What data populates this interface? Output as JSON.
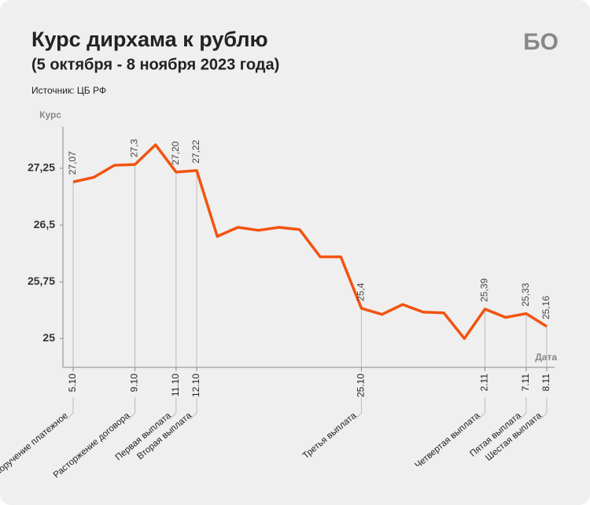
{
  "header": {
    "title": "Курс дирхама к рублю",
    "subtitle": "(5 октября - 8 ноября 2023 года)",
    "source": "Источник: ЦБ РФ",
    "logo": "БО"
  },
  "chart_data": {
    "type": "line",
    "y_label": "Курс",
    "x_label": "Дата",
    "categories": [
      "5.10",
      null,
      null,
      "9.10",
      null,
      "11.10",
      "12.10",
      null,
      null,
      null,
      null,
      null,
      null,
      null,
      "25.10",
      null,
      null,
      null,
      null,
      null,
      "2.11",
      null,
      "7.11",
      "8.11"
    ],
    "events": [
      "Поручение платежное",
      null,
      null,
      "Расторжение договора",
      null,
      "Первая выплата",
      "Вторая выплата",
      null,
      null,
      null,
      null,
      null,
      null,
      null,
      "Третья выплата",
      null,
      null,
      null,
      null,
      null,
      "Четвертая выплата",
      null,
      "Пятая выплата",
      "Шестая выплата"
    ],
    "series": [
      {
        "name": "Курс",
        "color": "#f2530f",
        "values": [
          27.07,
          27.13,
          27.29,
          27.3,
          27.56,
          27.2,
          27.22,
          26.35,
          26.47,
          26.43,
          26.47,
          26.44,
          26.08,
          26.08,
          25.4,
          25.32,
          25.45,
          25.35,
          25.34,
          25.0,
          25.39,
          25.28,
          25.33,
          25.16
        ],
        "value_labels": [
          "27,07",
          null,
          null,
          "27,3",
          null,
          "27,20",
          "27,22",
          null,
          null,
          null,
          null,
          null,
          null,
          null,
          "25,4",
          null,
          null,
          null,
          null,
          null,
          "25,39",
          null,
          "25,33",
          "25,16"
        ]
      }
    ],
    "ylim": [
      24.62,
      27.8
    ],
    "yticks": [
      25,
      {
        "value": 25.75,
        "label": "25,75"
      },
      {
        "value": 26.5,
        "label": "26,5"
      },
      {
        "value": 27.25,
        "label": "27,25"
      }
    ]
  }
}
